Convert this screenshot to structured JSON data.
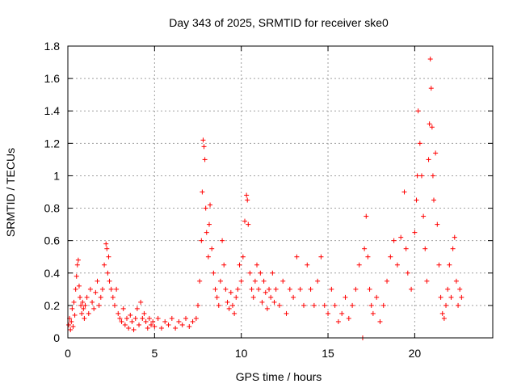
{
  "chart_data": {
    "type": "scatter",
    "title": "Day 343 of 2025, SRMTID for receiver ske0",
    "xlabel": "GPS time / hours",
    "ylabel": "SRMTID / TECUs",
    "xlim": [
      0,
      24.5
    ],
    "ylim": [
      0,
      1.8
    ],
    "xticks": [
      0,
      5,
      10,
      15,
      20
    ],
    "yticks": [
      0,
      0.2,
      0.4,
      0.6,
      0.8,
      1.0,
      1.2,
      1.4,
      1.6,
      1.8
    ],
    "xtick_labels": [
      "0",
      "5",
      "10",
      "15",
      "20"
    ],
    "ytick_labels": [
      "0",
      "0.2",
      "0.4",
      "0.6",
      "0.8",
      "1",
      "1.2",
      "1.4",
      "1.6",
      "1.8"
    ],
    "grid": true,
    "marker": "+",
    "color": "#ff0000",
    "series": [
      {
        "name": "SRMTID",
        "points": [
          [
            0.05,
            0.08
          ],
          [
            0.1,
            0.12
          ],
          [
            0.15,
            0.05
          ],
          [
            0.2,
            0.1
          ],
          [
            0.25,
            0.18
          ],
          [
            0.3,
            0.07
          ],
          [
            0.35,
            0.22
          ],
          [
            0.4,
            0.14
          ],
          [
            0.45,
            0.3
          ],
          [
            0.5,
            0.38
          ],
          [
            0.55,
            0.45
          ],
          [
            0.6,
            0.48
          ],
          [
            0.65,
            0.32
          ],
          [
            0.7,
            0.25
          ],
          [
            0.75,
            0.2
          ],
          [
            0.8,
            0.15
          ],
          [
            0.85,
            0.22
          ],
          [
            0.9,
            0.18
          ],
          [
            0.95,
            0.12
          ],
          [
            1.0,
            0.2
          ],
          [
            1.1,
            0.25
          ],
          [
            1.2,
            0.15
          ],
          [
            1.3,
            0.3
          ],
          [
            1.4,
            0.22
          ],
          [
            1.5,
            0.18
          ],
          [
            1.6,
            0.28
          ],
          [
            1.7,
            0.35
          ],
          [
            1.8,
            0.2
          ],
          [
            1.9,
            0.25
          ],
          [
            2.0,
            0.3
          ],
          [
            2.1,
            0.45
          ],
          [
            2.2,
            0.58
          ],
          [
            2.25,
            0.55
          ],
          [
            2.3,
            0.4
          ],
          [
            2.35,
            0.5
          ],
          [
            2.4,
            0.35
          ],
          [
            2.5,
            0.3
          ],
          [
            2.6,
            0.25
          ],
          [
            2.7,
            0.2
          ],
          [
            2.8,
            0.3
          ],
          [
            2.9,
            0.15
          ],
          [
            3.0,
            0.12
          ],
          [
            3.1,
            0.1
          ],
          [
            3.2,
            0.18
          ],
          [
            3.3,
            0.08
          ],
          [
            3.4,
            0.12
          ],
          [
            3.5,
            0.06
          ],
          [
            3.6,
            0.14
          ],
          [
            3.7,
            0.1
          ],
          [
            3.8,
            0.05
          ],
          [
            3.9,
            0.12
          ],
          [
            4.0,
            0.18
          ],
          [
            4.1,
            0.08
          ],
          [
            4.2,
            0.22
          ],
          [
            4.3,
            0.12
          ],
          [
            4.4,
            0.15
          ],
          [
            4.5,
            0.1
          ],
          [
            4.6,
            0.06
          ],
          [
            4.7,
            0.12
          ],
          [
            4.8,
            0.08
          ],
          [
            4.9,
            0.1
          ],
          [
            5.0,
            0.07
          ],
          [
            5.2,
            0.12
          ],
          [
            5.4,
            0.06
          ],
          [
            5.6,
            0.1
          ],
          [
            5.8,
            0.08
          ],
          [
            6.0,
            0.12
          ],
          [
            6.2,
            0.06
          ],
          [
            6.4,
            0.1
          ],
          [
            6.6,
            0.08
          ],
          [
            6.8,
            0.12
          ],
          [
            7.0,
            0.07
          ],
          [
            7.2,
            0.1
          ],
          [
            7.4,
            0.12
          ],
          [
            7.5,
            0.2
          ],
          [
            7.6,
            0.35
          ],
          [
            7.7,
            0.6
          ],
          [
            7.75,
            0.9
          ],
          [
            7.8,
            1.22
          ],
          [
            7.85,
            1.18
          ],
          [
            7.9,
            1.1
          ],
          [
            7.95,
            0.8
          ],
          [
            8.0,
            0.65
          ],
          [
            8.1,
            0.5
          ],
          [
            8.15,
            0.7
          ],
          [
            8.2,
            0.82
          ],
          [
            8.3,
            0.55
          ],
          [
            8.4,
            0.4
          ],
          [
            8.5,
            0.3
          ],
          [
            8.6,
            0.25
          ],
          [
            8.7,
            0.2
          ],
          [
            8.8,
            0.35
          ],
          [
            8.9,
            0.6
          ],
          [
            9.0,
            0.45
          ],
          [
            9.1,
            0.3
          ],
          [
            9.2,
            0.22
          ],
          [
            9.3,
            0.18
          ],
          [
            9.4,
            0.28
          ],
          [
            9.5,
            0.2
          ],
          [
            9.6,
            0.15
          ],
          [
            9.7,
            0.25
          ],
          [
            9.8,
            0.3
          ],
          [
            9.9,
            0.45
          ],
          [
            10.0,
            0.35
          ],
          [
            10.1,
            0.5
          ],
          [
            10.2,
            0.72
          ],
          [
            10.3,
            0.88
          ],
          [
            10.35,
            0.85
          ],
          [
            10.4,
            0.7
          ],
          [
            10.5,
            0.4
          ],
          [
            10.6,
            0.3
          ],
          [
            10.7,
            0.25
          ],
          [
            10.8,
            0.35
          ],
          [
            10.9,
            0.45
          ],
          [
            11.0,
            0.3
          ],
          [
            11.1,
            0.4
          ],
          [
            11.2,
            0.22
          ],
          [
            11.3,
            0.35
          ],
          [
            11.4,
            0.28
          ],
          [
            11.5,
            0.18
          ],
          [
            11.6,
            0.3
          ],
          [
            11.7,
            0.25
          ],
          [
            11.8,
            0.4
          ],
          [
            11.9,
            0.22
          ],
          [
            12.0,
            0.3
          ],
          [
            12.2,
            0.2
          ],
          [
            12.4,
            0.35
          ],
          [
            12.6,
            0.15
          ],
          [
            12.8,
            0.3
          ],
          [
            13.0,
            0.25
          ],
          [
            13.2,
            0.5
          ],
          [
            13.4,
            0.3
          ],
          [
            13.6,
            0.2
          ],
          [
            13.8,
            0.45
          ],
          [
            14.0,
            0.3
          ],
          [
            14.2,
            0.2
          ],
          [
            14.4,
            0.35
          ],
          [
            14.6,
            0.5
          ],
          [
            14.8,
            0.2
          ],
          [
            15.0,
            0.15
          ],
          [
            15.2,
            0.3
          ],
          [
            15.4,
            0.2
          ],
          [
            15.6,
            0.1
          ],
          [
            15.8,
            0.15
          ],
          [
            16.0,
            0.25
          ],
          [
            16.2,
            0.12
          ],
          [
            16.4,
            0.2
          ],
          [
            16.6,
            0.3
          ],
          [
            16.8,
            0.45
          ],
          [
            17.0,
            0.0
          ],
          [
            17.1,
            0.55
          ],
          [
            17.2,
            0.75
          ],
          [
            17.3,
            0.5
          ],
          [
            17.4,
            0.3
          ],
          [
            17.5,
            0.2
          ],
          [
            17.6,
            0.15
          ],
          [
            17.8,
            0.25
          ],
          [
            18.0,
            0.1
          ],
          [
            18.2,
            0.2
          ],
          [
            18.4,
            0.35
          ],
          [
            18.6,
            0.5
          ],
          [
            18.8,
            0.6
          ],
          [
            19.0,
            0.45
          ],
          [
            19.2,
            0.62
          ],
          [
            19.4,
            0.9
          ],
          [
            19.5,
            0.55
          ],
          [
            19.6,
            0.4
          ],
          [
            19.8,
            0.3
          ],
          [
            20.0,
            0.65
          ],
          [
            20.1,
            0.85
          ],
          [
            20.15,
            1.0
          ],
          [
            20.2,
            1.4
          ],
          [
            20.3,
            1.2
          ],
          [
            20.4,
            1.0
          ],
          [
            20.5,
            0.75
          ],
          [
            20.6,
            0.55
          ],
          [
            20.7,
            0.35
          ],
          [
            20.8,
            1.1
          ],
          [
            20.85,
            1.32
          ],
          [
            20.9,
            1.72
          ],
          [
            20.95,
            1.54
          ],
          [
            21.0,
            1.3
          ],
          [
            21.05,
            1.0
          ],
          [
            21.1,
            0.85
          ],
          [
            21.2,
            1.14
          ],
          [
            21.3,
            0.7
          ],
          [
            21.4,
            0.45
          ],
          [
            21.5,
            0.25
          ],
          [
            21.6,
            0.15
          ],
          [
            21.7,
            0.12
          ],
          [
            21.8,
            0.2
          ],
          [
            21.9,
            0.3
          ],
          [
            22.0,
            0.45
          ],
          [
            22.1,
            0.25
          ],
          [
            22.2,
            0.55
          ],
          [
            22.3,
            0.62
          ],
          [
            22.4,
            0.35
          ],
          [
            22.5,
            0.2
          ],
          [
            22.6,
            0.3
          ],
          [
            22.7,
            0.25
          ]
        ]
      }
    ]
  }
}
